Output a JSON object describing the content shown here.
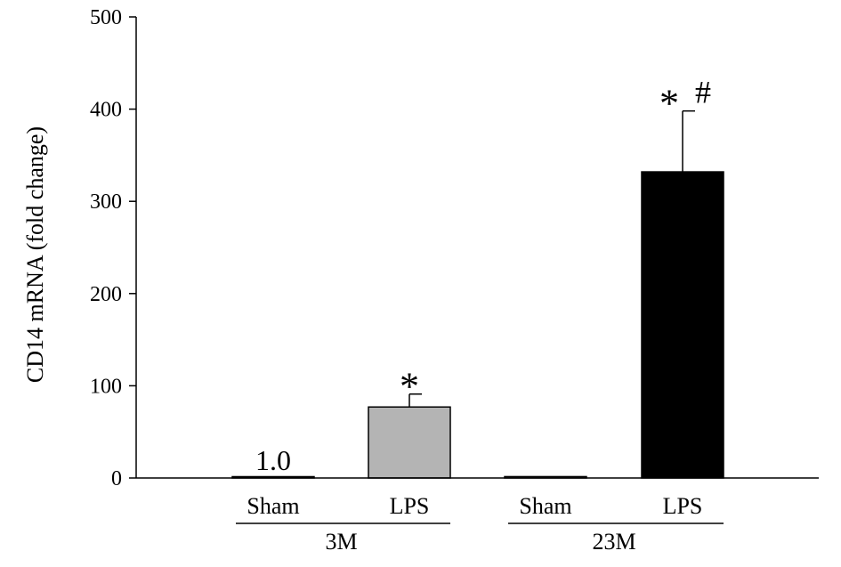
{
  "chart_data": {
    "type": "bar",
    "title": "",
    "xlabel": "",
    "ylabel": "CD14 mRNA (fold change)",
    "ylim": [
      0,
      500
    ],
    "yticks": [
      0,
      100,
      200,
      300,
      400,
      500
    ],
    "grid": false,
    "legend": "none",
    "categories": [
      "Sham",
      "LPS",
      "Sham",
      "LPS"
    ],
    "groups": [
      {
        "label": "3M",
        "categories": [
          0,
          1
        ]
      },
      {
        "label": "23M",
        "categories": [
          2,
          3
        ]
      }
    ],
    "values": [
      1.0,
      77,
      1.5,
      332
    ],
    "errors": [
      0,
      14,
      0,
      66
    ],
    "bar_colors": [
      "#ffffff",
      "#b4b4b4",
      "#ffffff",
      "#000000"
    ],
    "data_labels": [
      "1.0",
      "",
      "",
      ""
    ],
    "annotations": [
      {
        "bar": 1,
        "symbol": "*"
      },
      {
        "bar": 3,
        "symbol": "*"
      },
      {
        "bar": 3,
        "symbol": "#"
      }
    ]
  }
}
